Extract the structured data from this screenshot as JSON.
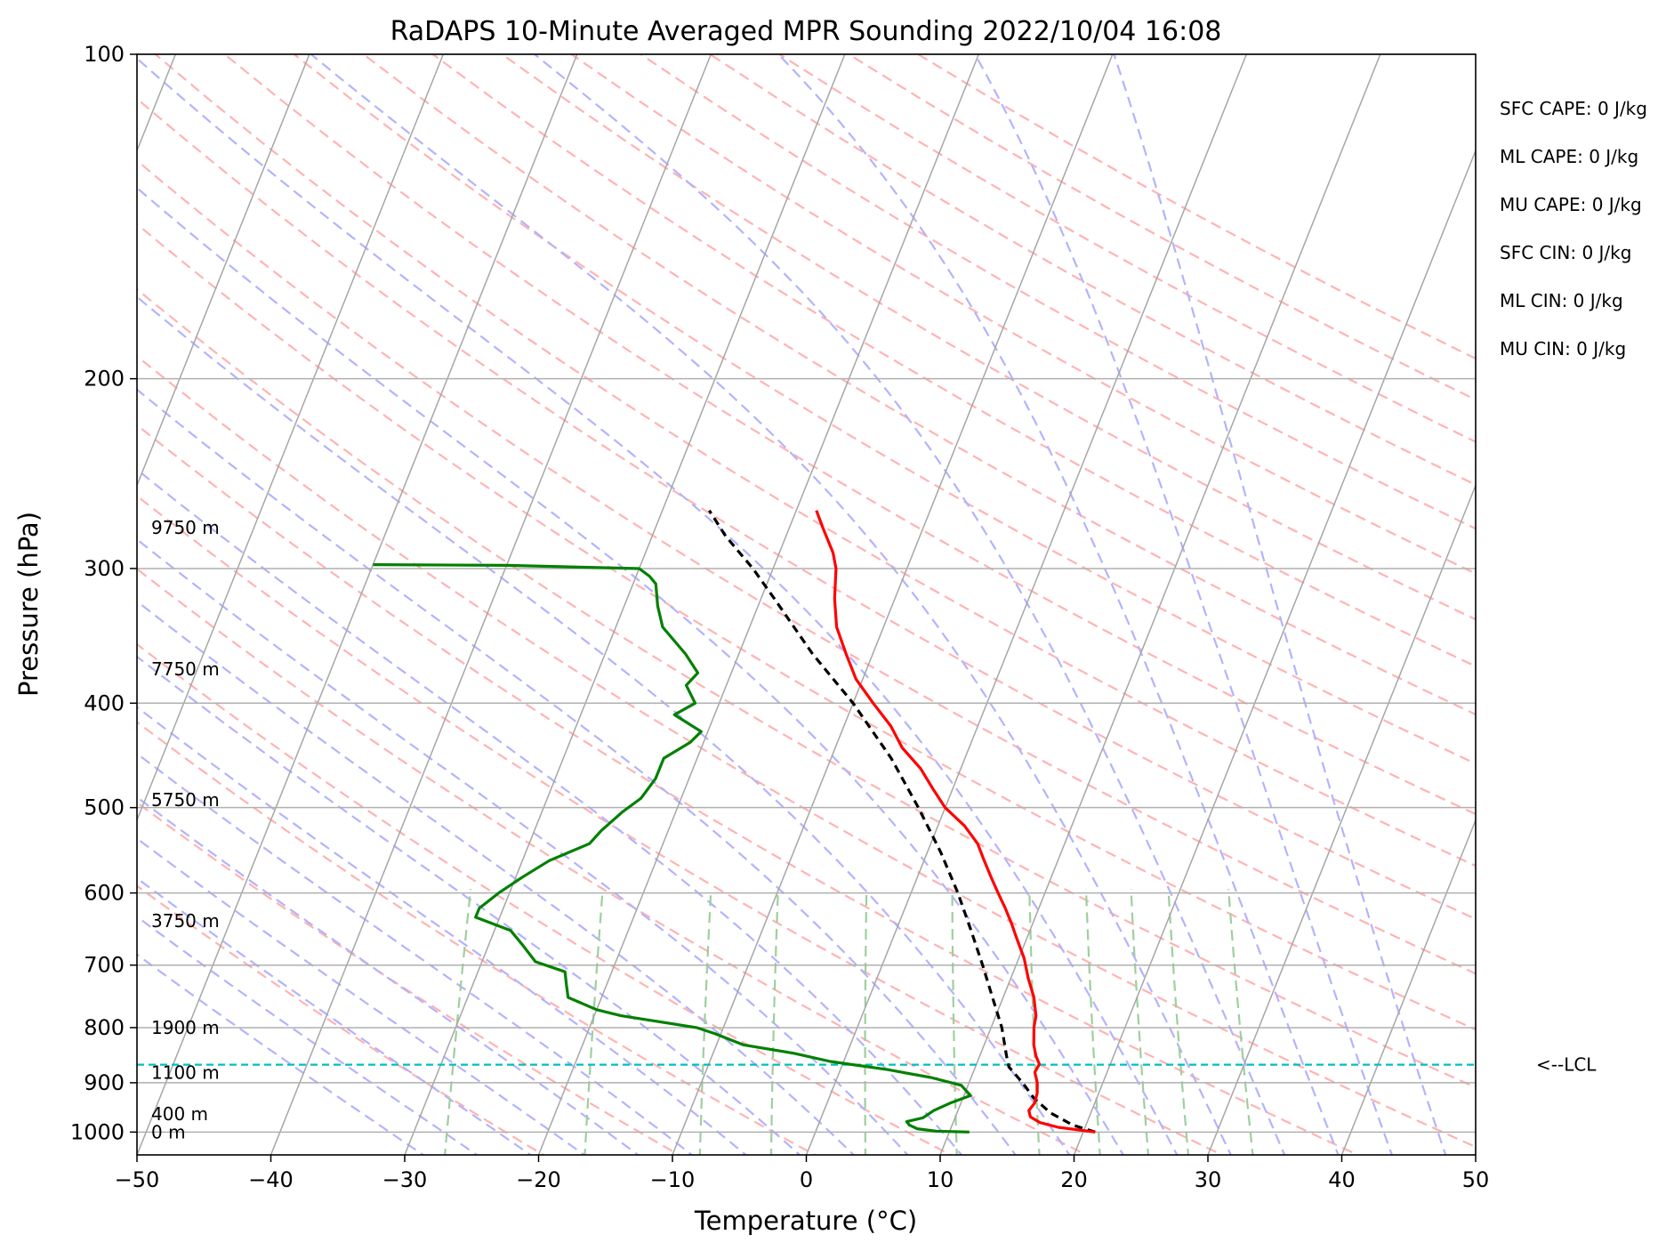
{
  "chart_data": {
    "type": "line",
    "title": "RaDAPS 10-Minute Averaged MPR Sounding 2022/10/04 16:08",
    "xlabel": "Temperature (°C)",
    "ylabel": "Pressure (hPa)",
    "xlim": [
      -50,
      50
    ],
    "ylim": [
      1050,
      100
    ],
    "y_scale": "log",
    "grid": true,
    "x_ticks": [
      -50,
      -40,
      -30,
      -20,
      -10,
      0,
      10,
      20,
      30,
      40,
      50
    ],
    "x_tick_labels": [
      "−50",
      "−40",
      "−30",
      "−20",
      "−10",
      "0",
      "10",
      "20",
      "30",
      "40",
      "50"
    ],
    "y_ticks": [
      100,
      200,
      300,
      400,
      500,
      600,
      700,
      800,
      900,
      1000
    ],
    "y_tick_labels": [
      "100",
      "200",
      "300",
      "400",
      "500",
      "600",
      "700",
      "800",
      "900",
      "1000"
    ],
    "colors": {
      "temperature": "#ff0000",
      "dewpoint": "#008000",
      "parcel": "#000000",
      "lcl": "#00bfbf",
      "isotherm": "#a6a6a6",
      "dry_adiabat": "#ffb3b3",
      "moist_adiabat": "#b3b3ff",
      "mixing_ratio": "#9ecf9e"
    },
    "series": [
      {
        "key": "temperature",
        "points": [
          [
            1000,
            20.9
          ],
          [
            990,
            18.0
          ],
          [
            980,
            16.5
          ],
          [
            968,
            15.6
          ],
          [
            955,
            15.3
          ],
          [
            940,
            15.5
          ],
          [
            920,
            15.4
          ],
          [
            900,
            15.1
          ],
          [
            880,
            14.6
          ],
          [
            865,
            14.7
          ],
          [
            850,
            14.2
          ],
          [
            830,
            13.7
          ],
          [
            800,
            13.2
          ],
          [
            780,
            13.0
          ],
          [
            750,
            12.3
          ],
          [
            720,
            11.3
          ],
          [
            690,
            10.4
          ],
          [
            660,
            9.2
          ],
          [
            640,
            8.4
          ],
          [
            620,
            7.5
          ],
          [
            600,
            6.5
          ],
          [
            580,
            5.5
          ],
          [
            560,
            4.5
          ],
          [
            540,
            3.5
          ],
          [
            520,
            2.0
          ],
          [
            500,
            0.0
          ],
          [
            480,
            -1.5
          ],
          [
            460,
            -3.0
          ],
          [
            440,
            -5.0
          ],
          [
            420,
            -6.5
          ],
          [
            400,
            -8.5
          ],
          [
            380,
            -10.5
          ],
          [
            360,
            -12.0
          ],
          [
            340,
            -13.5
          ],
          [
            320,
            -14.5
          ],
          [
            300,
            -15.3
          ],
          [
            290,
            -16.0
          ],
          [
            275,
            -17.5
          ],
          [
            265,
            -18.5
          ]
        ]
      },
      {
        "key": "dewpoint",
        "points": [
          [
            1000,
            11.5
          ],
          [
            998,
            9.0
          ],
          [
            993,
            7.5
          ],
          [
            985,
            6.8
          ],
          [
            978,
            6.5
          ],
          [
            970,
            7.6
          ],
          [
            955,
            8.2
          ],
          [
            940,
            9.2
          ],
          [
            925,
            10.5
          ],
          [
            905,
            9.5
          ],
          [
            890,
            7.0
          ],
          [
            875,
            3.5
          ],
          [
            860,
            -1.0
          ],
          [
            845,
            -4.0
          ],
          [
            830,
            -8.0
          ],
          [
            810,
            -10.5
          ],
          [
            800,
            -12.0
          ],
          [
            780,
            -18.0
          ],
          [
            770,
            -20.0
          ],
          [
            750,
            -22.5
          ],
          [
            730,
            -23.0
          ],
          [
            710,
            -23.5
          ],
          [
            695,
            -26.0
          ],
          [
            670,
            -27.5
          ],
          [
            650,
            -28.8
          ],
          [
            632,
            -31.8
          ],
          [
            620,
            -31.8
          ],
          [
            600,
            -30.8
          ],
          [
            580,
            -29.5
          ],
          [
            560,
            -28.0
          ],
          [
            540,
            -25.5
          ],
          [
            525,
            -25.0
          ],
          [
            505,
            -24.0
          ],
          [
            490,
            -23.0
          ],
          [
            470,
            -22.5
          ],
          [
            450,
            -22.5
          ],
          [
            435,
            -21.0
          ],
          [
            425,
            -20.5
          ],
          [
            410,
            -23.0
          ],
          [
            400,
            -21.8
          ],
          [
            385,
            -23.0
          ],
          [
            375,
            -22.5
          ],
          [
            360,
            -24.0
          ],
          [
            340,
            -26.5
          ],
          [
            325,
            -27.5
          ],
          [
            310,
            -28.3
          ],
          [
            305,
            -29.0
          ],
          [
            300,
            -30.0
          ],
          [
            298,
            -40.0
          ],
          [
            297.5,
            -50.0
          ]
        ]
      },
      {
        "key": "parcel",
        "points": [
          [
            1000,
            20.9
          ],
          [
            985,
            19.0
          ],
          [
            960,
            17.0
          ],
          [
            930,
            15.3
          ],
          [
            900,
            14.0
          ],
          [
            870,
            12.5
          ],
          [
            850,
            12.0
          ],
          [
            800,
            10.8
          ],
          [
            750,
            9.2
          ],
          [
            700,
            7.5
          ],
          [
            650,
            5.6
          ],
          [
            600,
            3.5
          ],
          [
            550,
            1.0
          ],
          [
            500,
            -2.0
          ],
          [
            450,
            -5.5
          ],
          [
            400,
            -10.0
          ],
          [
            360,
            -14.5
          ],
          [
            320,
            -19.0
          ],
          [
            300,
            -21.5
          ],
          [
            280,
            -24.5
          ],
          [
            265,
            -26.5
          ]
        ]
      }
    ],
    "lcl": {
      "pressure": 866,
      "label": "<--LCL"
    },
    "height_labels": [
      {
        "text": "9750 m",
        "pressure": 275
      },
      {
        "text": "7750 m",
        "pressure": 372
      },
      {
        "text": "5750 m",
        "pressure": 492
      },
      {
        "text": "3750 m",
        "pressure": 637
      },
      {
        "text": "1900 m",
        "pressure": 800
      },
      {
        "text": "1100 m",
        "pressure": 881
      },
      {
        "text": "400 m",
        "pressure": 962
      },
      {
        "text": "0 m",
        "pressure": 1000
      }
    ],
    "indices": [
      "SFC CAPE: 0 J/kg",
      "ML CAPE: 0 J/kg",
      "MU CAPE: 0 J/kg",
      "SFC CIN: 0 J/kg",
      "ML CIN: 0 J/kg",
      "MU CIN: 0 J/kg"
    ]
  }
}
